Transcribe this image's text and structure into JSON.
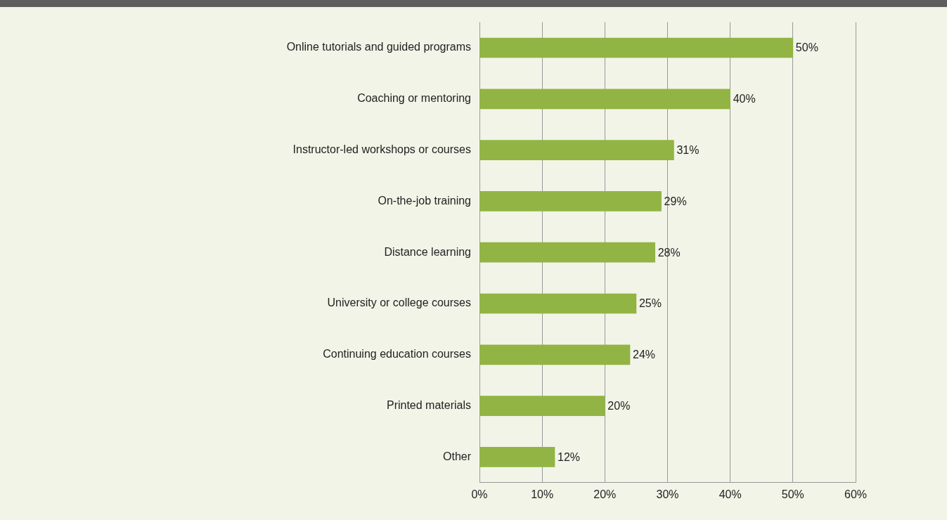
{
  "chart_data": {
    "type": "bar",
    "orientation": "horizontal",
    "categories": [
      "Online tutorials and guided programs",
      "Coaching or mentoring",
      "Instructor-led workshops or courses",
      "On-the-job training",
      "Distance learning",
      "University or college courses",
      "Continuing education courses",
      "Printed materials",
      "Other"
    ],
    "values": [
      50,
      40,
      31,
      29,
      28,
      25,
      24,
      20,
      12
    ],
    "value_labels": [
      "50%",
      "40%",
      "31%",
      "29%",
      "28%",
      "25%",
      "24%",
      "20%",
      "12%"
    ],
    "color": "#92b444",
    "xlim": [
      0,
      60
    ],
    "xticks": [
      {
        "value": 0,
        "label": "0%"
      },
      {
        "value": 10,
        "label": "10%"
      },
      {
        "value": 20,
        "label": "20%"
      },
      {
        "value": 30,
        "label": "30%"
      },
      {
        "value": 40,
        "label": "40%"
      },
      {
        "value": 50,
        "label": "50%"
      },
      {
        "value": 60,
        "label": "60%"
      }
    ],
    "grid": "x",
    "legend": false
  }
}
